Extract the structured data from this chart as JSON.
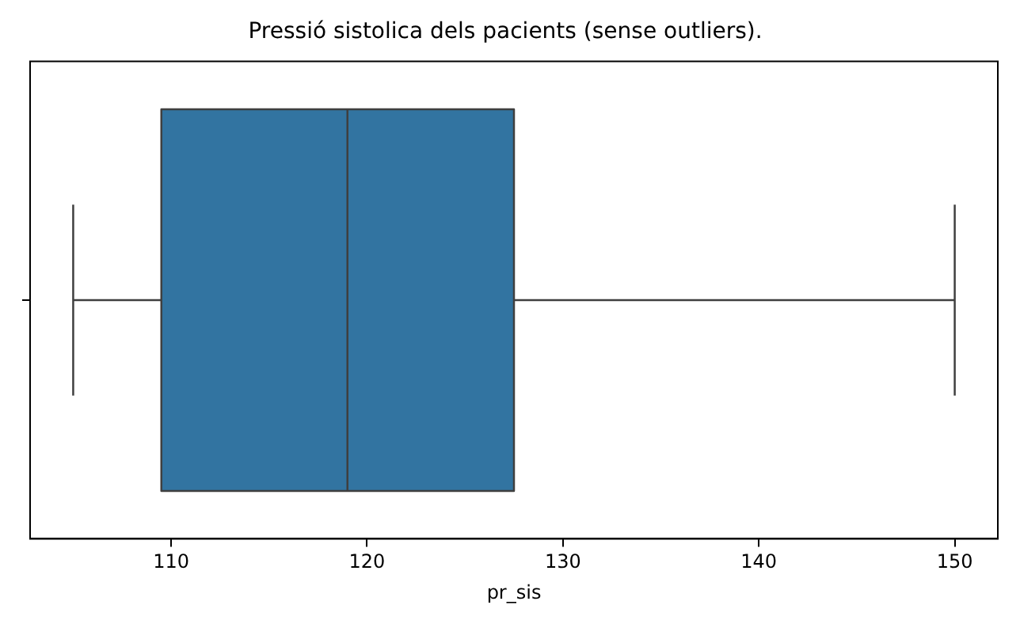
{
  "chart_data": {
    "type": "box",
    "title": "Pressió sistolica dels pacients (sense outliers).",
    "xlabel": "pr_sis",
    "orientation": "horizontal",
    "categories": [
      null
    ],
    "series": [
      {
        "color": "#3274a1",
        "boxes": [
          {
            "low": 105,
            "q1": 109.5,
            "median": 119,
            "q3": 127.5,
            "high": 150
          }
        ]
      }
    ],
    "xlim": [
      102.8,
      152.2
    ],
    "xticks": [
      110,
      120,
      130,
      140,
      150
    ],
    "grid": false,
    "legend": false
  }
}
